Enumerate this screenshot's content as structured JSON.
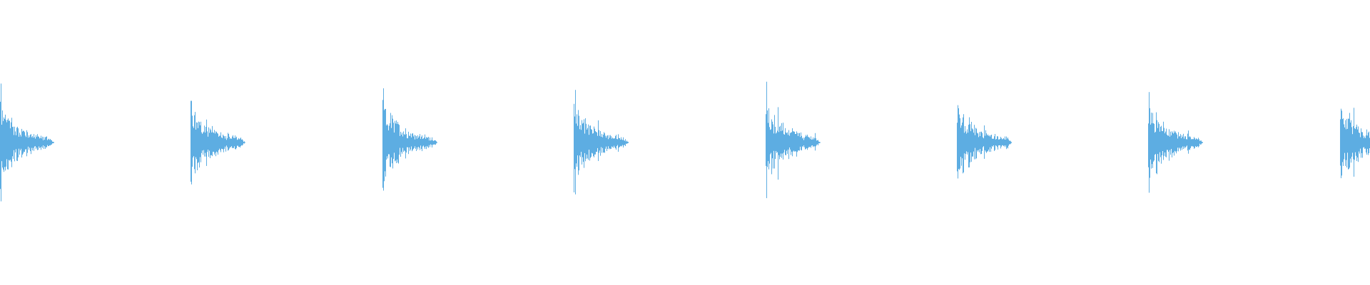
{
  "waveform": {
    "color": "#5dade2",
    "background": "#ffffff",
    "burst_count": 8
  }
}
